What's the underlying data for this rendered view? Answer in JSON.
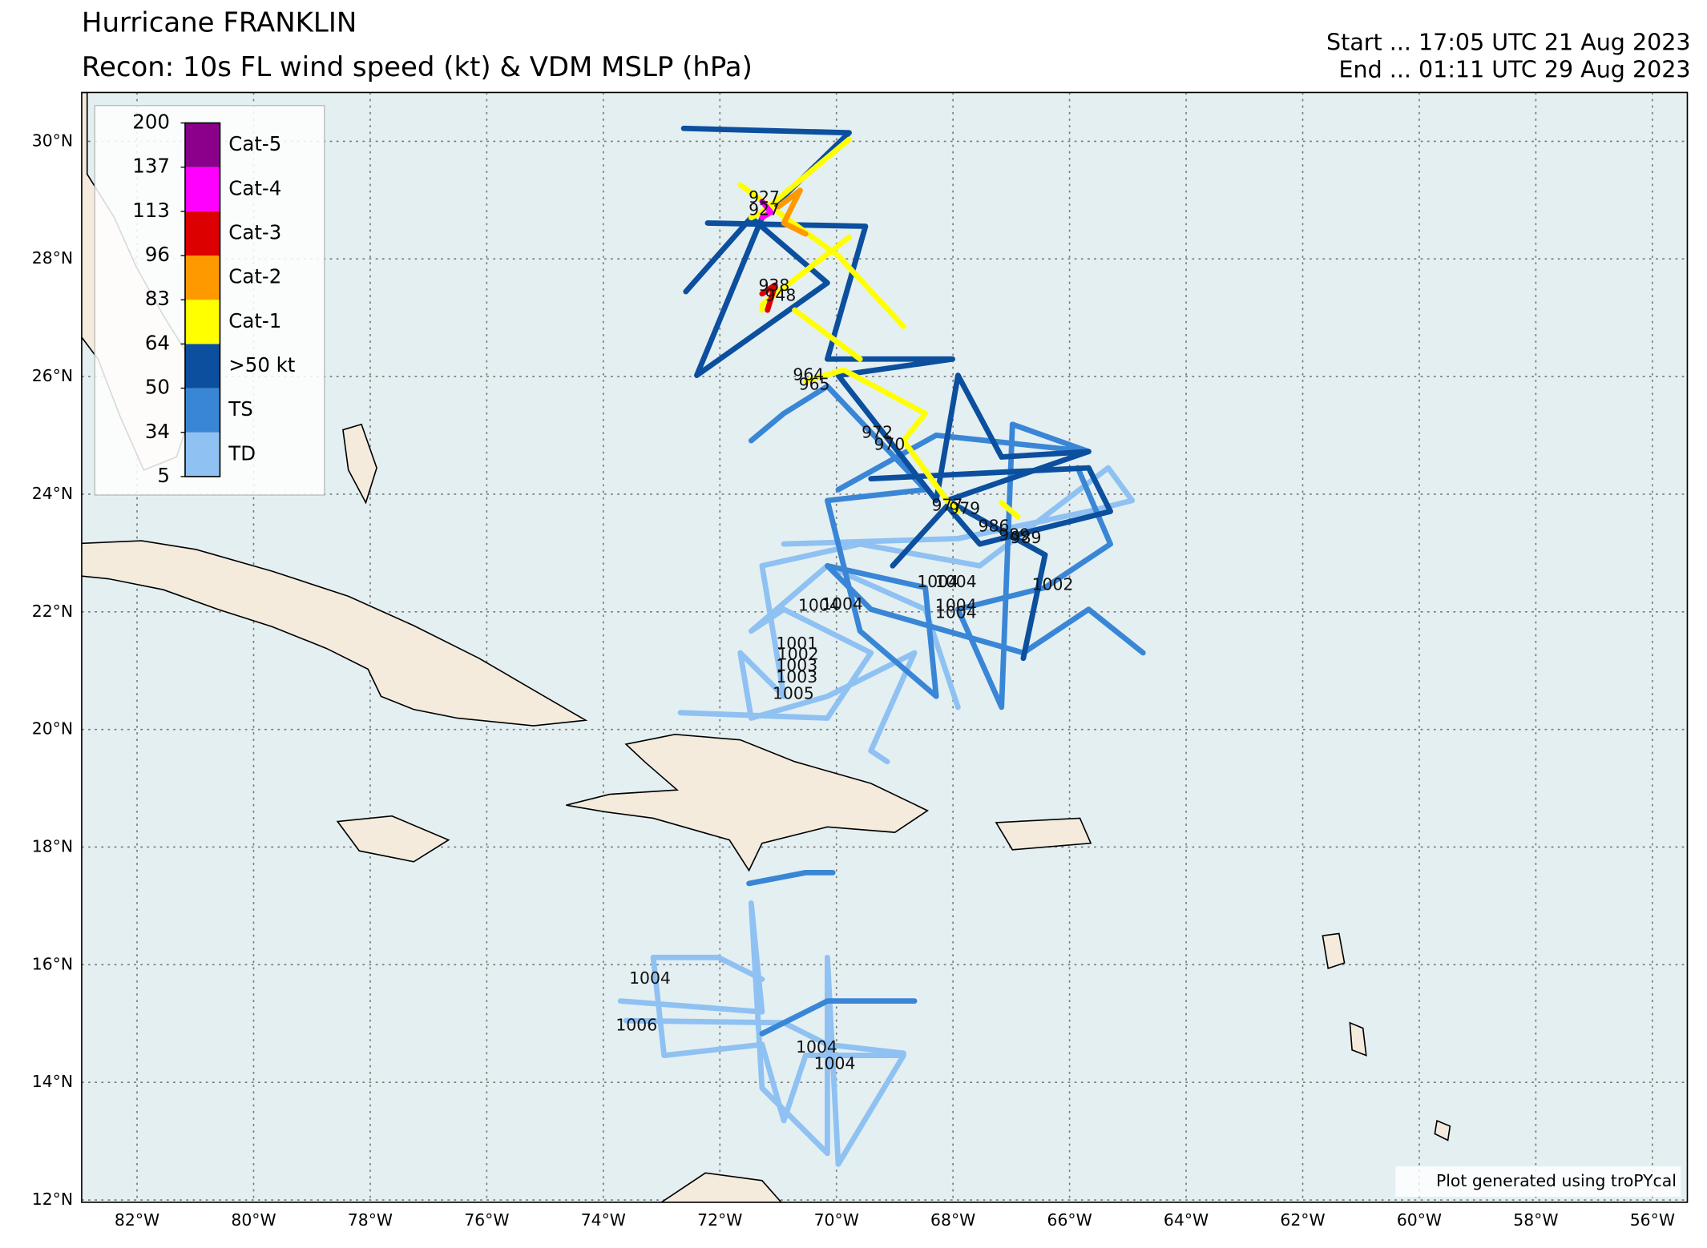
{
  "header": {
    "title": "Hurricane FRANKLIN",
    "subtitle": "Recon: 10s FL wind speed (kt) & VDM MSLP (hPa)",
    "start": "Start ... 17:05 UTC 21 Aug 2023",
    "end": "End ... 01:11 UTC 29 Aug 2023"
  },
  "map": {
    "lonlim": [
      -82.95,
      -55.4
    ],
    "latlim": [
      11.96,
      30.83
    ],
    "lon_ticks": [
      {
        "value": -82,
        "label": "82°W"
      },
      {
        "value": -80,
        "label": "80°W"
      },
      {
        "value": -78,
        "label": "78°W"
      },
      {
        "value": -76,
        "label": "76°W"
      },
      {
        "value": -74,
        "label": "74°W"
      },
      {
        "value": -72,
        "label": "72°W"
      },
      {
        "value": -70,
        "label": "70°W"
      },
      {
        "value": -68,
        "label": "68°W"
      },
      {
        "value": -66,
        "label": "66°W"
      },
      {
        "value": -64,
        "label": "64°W"
      },
      {
        "value": -62,
        "label": "62°W"
      },
      {
        "value": -60,
        "label": "60°W"
      },
      {
        "value": -58,
        "label": "58°W"
      },
      {
        "value": -56,
        "label": "56°W"
      }
    ],
    "lat_ticks": [
      {
        "value": 30,
        "label": "30°N"
      },
      {
        "value": 28,
        "label": "28°N"
      },
      {
        "value": 26,
        "label": "26°N"
      },
      {
        "value": 24,
        "label": "24°N"
      },
      {
        "value": 22,
        "label": "22°N"
      },
      {
        "value": 20,
        "label": "20°N"
      },
      {
        "value": 18,
        "label": "18°N"
      },
      {
        "value": 16,
        "label": "16°N"
      },
      {
        "value": 14,
        "label": "14°N"
      },
      {
        "value": 12,
        "label": "12°N"
      }
    ],
    "grid": true
  },
  "colorbar": {
    "ticks": [
      5,
      34,
      50,
      64,
      83,
      96,
      113,
      137,
      200
    ],
    "categories": [
      {
        "label": "TD",
        "color": "#8fc1f2"
      },
      {
        "label": "TS",
        "color": "#3a86d6"
      },
      {
        "label": ">50 kt",
        "color": "#0b4f9e"
      },
      {
        "label": "Cat-1",
        "color": "#ffff00"
      },
      {
        "label": "Cat-2",
        "color": "#ff9900"
      },
      {
        "label": "Cat-3",
        "color": "#dd0000"
      },
      {
        "label": "Cat-4",
        "color": "#ff00ff"
      },
      {
        "label": "Cat-5",
        "color": "#8b008b"
      }
    ]
  },
  "pressure_labels": [
    {
      "text": "927",
      "lon": -71.24,
      "lat": 29.04
    },
    {
      "text": "927",
      "lon": -71.24,
      "lat": 28.83
    },
    {
      "text": "938",
      "lon": -71.07,
      "lat": 27.54
    },
    {
      "text": "948",
      "lon": -70.96,
      "lat": 27.37
    },
    {
      "text": "964",
      "lon": -70.48,
      "lat": 26.02
    },
    {
      "text": "965",
      "lon": -70.38,
      "lat": 25.86
    },
    {
      "text": "972",
      "lon": -69.3,
      "lat": 25.04
    },
    {
      "text": "970",
      "lon": -69.09,
      "lat": 24.84
    },
    {
      "text": "977",
      "lon": -68.1,
      "lat": 23.8
    },
    {
      "text": "979",
      "lon": -67.8,
      "lat": 23.75
    },
    {
      "text": "986",
      "lon": -67.3,
      "lat": 23.45
    },
    {
      "text": "989",
      "lon": -66.95,
      "lat": 23.3
    },
    {
      "text": "989",
      "lon": -66.75,
      "lat": 23.25
    },
    {
      "text": "1002",
      "lon": -66.29,
      "lat": 22.45
    },
    {
      "text": "1004",
      "lon": -68.26,
      "lat": 22.5
    },
    {
      "text": "1004",
      "lon": -67.95,
      "lat": 22.5
    },
    {
      "text": "1004",
      "lon": -67.95,
      "lat": 22.1
    },
    {
      "text": "1004",
      "lon": -67.95,
      "lat": 21.98
    },
    {
      "text": "1004",
      "lon": -70.3,
      "lat": 22.1
    },
    {
      "text": "1004",
      "lon": -69.9,
      "lat": 22.12
    },
    {
      "text": "1001",
      "lon": -70.68,
      "lat": 21.45
    },
    {
      "text": "1002",
      "lon": -70.66,
      "lat": 21.27
    },
    {
      "text": "1003",
      "lon": -70.68,
      "lat": 21.08
    },
    {
      "text": "1003",
      "lon": -70.68,
      "lat": 20.88
    },
    {
      "text": "1005",
      "lon": -70.74,
      "lat": 20.6
    },
    {
      "text": "1004",
      "lon": -73.2,
      "lat": 15.76
    },
    {
      "text": "1006",
      "lon": -73.43,
      "lat": 14.96
    },
    {
      "text": "1004",
      "lon": -70.34,
      "lat": 14.59
    },
    {
      "text": "1004",
      "lon": -70.03,
      "lat": 14.31
    }
  ],
  "footer": "Plot generated using troPYcal"
}
